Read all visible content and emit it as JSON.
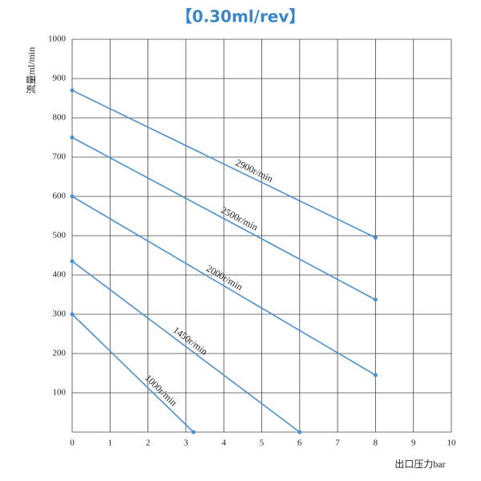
{
  "chart_data": {
    "type": "line",
    "title": "【0.30ml/rev】",
    "x_label": "出口压力bar",
    "y_label": "流量ml/min",
    "xlim": [
      0,
      10
    ],
    "xticks": [
      0,
      1,
      2,
      3,
      4,
      5,
      6,
      7,
      8,
      9,
      10
    ],
    "ylim": [
      0,
      1000
    ],
    "yticks": [
      100,
      200,
      300,
      400,
      500,
      600,
      700,
      800,
      900,
      1000
    ],
    "grid": true,
    "series": [
      {
        "name": "2900r/min",
        "color": "#4a90d0",
        "x": [
          0,
          8
        ],
        "values": [
          870,
          495
        ]
      },
      {
        "name": "2500r/min",
        "color": "#4a90d0",
        "x": [
          0,
          8
        ],
        "values": [
          750,
          337
        ]
      },
      {
        "name": "2000r/min",
        "color": "#4a90d0",
        "x": [
          0,
          8
        ],
        "values": [
          600,
          145
        ]
      },
      {
        "name": "1450r/min",
        "color": "#4a90d0",
        "x": [
          0,
          6
        ],
        "values": [
          435,
          0
        ]
      },
      {
        "name": "1000r/min",
        "color": "#4a90d0",
        "x": [
          0,
          3.2
        ],
        "values": [
          300,
          0
        ]
      }
    ]
  }
}
